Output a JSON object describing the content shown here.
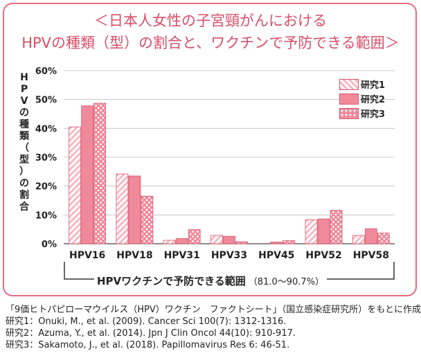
{
  "header": {
    "title_line1": "＜日本人女性の子宮頸がんにおける",
    "title_line2": "HPVの種類（型）の割合と、ワクチンで予防できる範囲＞"
  },
  "colors": {
    "accent": "#e46c7f",
    "bar": "#ef8a9b",
    "bar_dark": "#d9546b"
  },
  "chart_data": {
    "type": "bar",
    "ylabel": "HPVの種類（型）の割合",
    "ylim": [
      0,
      60
    ],
    "yticks": [
      "0%",
      "10%",
      "20%",
      "30%",
      "40%",
      "50%",
      "60%"
    ],
    "ytick_values": [
      0,
      10,
      20,
      30,
      40,
      50,
      60
    ],
    "grid": true,
    "legend_position": "top-right",
    "categories": [
      "HPV16",
      "HPV18",
      "HPV31",
      "HPV33",
      "HPV45",
      "HPV52",
      "HPV58"
    ],
    "series": [
      {
        "name": "研究1",
        "pattern": "diagonal",
        "values": [
          40.5,
          24.2,
          1.2,
          2.9,
          0.0,
          8.3,
          2.9
        ]
      },
      {
        "name": "研究2",
        "pattern": "solid",
        "values": [
          47.8,
          23.5,
          1.8,
          2.6,
          0.6,
          8.6,
          5.2
        ]
      },
      {
        "name": "研究3",
        "pattern": "dots",
        "values": [
          48.7,
          16.5,
          4.9,
          0.7,
          1.1,
          11.6,
          3.7
        ]
      }
    ],
    "annotation": {
      "main": "HPVワクチンで予防できる範囲",
      "sub": "（81.0～90.7%）"
    }
  },
  "footer": {
    "lines": [
      "「9価ヒトパピローマウイルス（HPV）ワクチン　ファクトシート」（国立感染症研究所）をもとに作成",
      "研究1：Onuki, M., et al. (2009). Cancer Sci 100(7): 1312-1316.",
      "研究2：Azuma, Y., et al. (2014).  Jpn J Clin Oncol 44(10): 910-917.",
      "研究3：Sakamoto, J., et al. (2018). Papillomavirus Res 6: 46-51."
    ]
  }
}
